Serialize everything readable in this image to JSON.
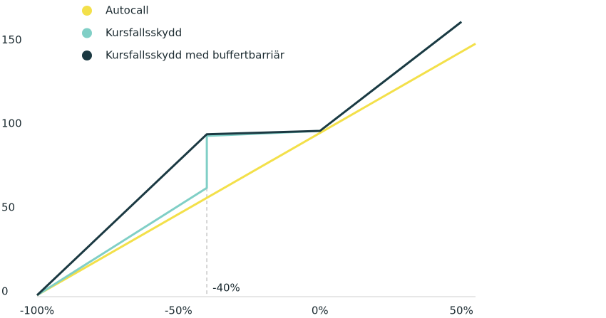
{
  "chart_data": {
    "type": "line",
    "series": [
      {
        "name": "Autocall",
        "color": "#f3e04a",
        "x": [
          -100,
          55
        ],
        "values": [
          0,
          150
        ]
      },
      {
        "name": "Kursfallsskydd",
        "color": "#80cfc6",
        "x": [
          -100,
          -40,
          -40,
          0,
          50
        ],
        "values": [
          0,
          64,
          95,
          98,
          163
        ]
      },
      {
        "name": "Kursfallsskydd med buffertbarriär",
        "color": "#1b3942",
        "x": [
          -100,
          -40,
          0,
          50
        ],
        "values": [
          0,
          96,
          98,
          163
        ]
      }
    ],
    "xlim": [
      -100,
      55
    ],
    "ylim": [
      0,
      165
    ],
    "xticks": [
      {
        "value": -100,
        "label": "-100%"
      },
      {
        "value": -50,
        "label": "-50%"
      },
      {
        "value": 0,
        "label": "0%"
      },
      {
        "value": 50,
        "label": "50%"
      }
    ],
    "yticks": [
      0,
      50,
      100,
      150
    ],
    "annotations": [
      {
        "text": "-40%",
        "x": -40,
        "y": 64
      }
    ],
    "grid": false
  }
}
